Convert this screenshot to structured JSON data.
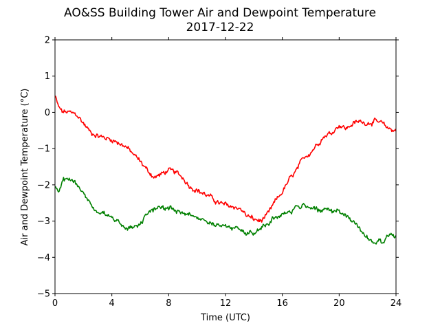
{
  "chart_data": {
    "type": "line",
    "title": "AO&SS Building Tower Air and Dewpoint Temperature",
    "subtitle": "2017-12-22",
    "xlabel": "Time (UTC)",
    "ylabel": "Air and Dewpoint Temperature (°C)",
    "xlim": [
      0,
      24
    ],
    "ylim": [
      -5,
      2
    ],
    "xticks": [
      "0",
      "4",
      "8",
      "12",
      "16",
      "20",
      "24"
    ],
    "yticks": [
      "2",
      "1",
      "0",
      "−1",
      "−2",
      "−3",
      "−4",
      "−5"
    ],
    "grid": false,
    "series": [
      {
        "color": "#ff0000",
        "x": [
          0,
          0.25,
          0.5,
          1,
          1.5,
          2,
          2.5,
          3,
          3.5,
          4,
          4.5,
          5,
          5.5,
          6,
          6.5,
          7,
          7.5,
          8,
          8.5,
          9,
          9.5,
          10,
          10.5,
          11,
          11.5,
          12,
          12.5,
          13,
          13.5,
          14,
          14.5,
          15,
          15.5,
          16,
          16.5,
          17,
          17.5,
          18,
          18.5,
          19,
          19.5,
          20,
          20.5,
          21,
          21.5,
          22,
          22.5,
          23,
          23.5,
          24
        ],
        "values": [
          0.45,
          0.15,
          0.02,
          0.0,
          -0.05,
          -0.3,
          -0.55,
          -0.65,
          -0.7,
          -0.75,
          -0.85,
          -0.95,
          -1.15,
          -1.35,
          -1.6,
          -1.8,
          -1.7,
          -1.6,
          -1.65,
          -1.8,
          -2.05,
          -2.15,
          -2.25,
          -2.35,
          -2.5,
          -2.55,
          -2.6,
          -2.65,
          -2.85,
          -2.95,
          -3.0,
          -2.8,
          -2.45,
          -2.2,
          -1.85,
          -1.6,
          -1.25,
          -1.1,
          -0.85,
          -0.65,
          -0.55,
          -0.35,
          -0.45,
          -0.3,
          -0.25,
          -0.3,
          -0.25,
          -0.3,
          -0.45,
          -0.5
        ]
      },
      {
        "color": "#008000",
        "x": [
          0,
          0.25,
          0.5,
          1,
          1.5,
          2,
          2.5,
          3,
          3.5,
          4,
          4.5,
          5,
          5.5,
          6,
          6.5,
          7,
          7.5,
          8,
          8.5,
          9,
          9.5,
          10,
          10.5,
          11,
          11.5,
          12,
          12.5,
          13,
          13.5,
          14,
          14.5,
          15,
          15.5,
          16,
          16.5,
          17,
          17.5,
          18,
          18.5,
          19,
          19.5,
          20,
          20.5,
          21,
          21.5,
          22,
          22.5,
          23,
          23.5,
          24
        ],
        "values": [
          -2.1,
          -2.15,
          -1.9,
          -1.85,
          -1.95,
          -2.2,
          -2.55,
          -2.75,
          -2.8,
          -2.9,
          -3.05,
          -3.2,
          -3.15,
          -3.05,
          -2.85,
          -2.65,
          -2.6,
          -2.65,
          -2.7,
          -2.75,
          -2.8,
          -2.9,
          -2.95,
          -3.05,
          -3.1,
          -3.15,
          -3.2,
          -3.25,
          -3.3,
          -3.3,
          -3.2,
          -3.05,
          -2.9,
          -2.8,
          -2.75,
          -2.65,
          -2.55,
          -2.6,
          -2.7,
          -2.65,
          -2.75,
          -2.7,
          -2.85,
          -3.0,
          -3.25,
          -3.45,
          -3.6,
          -3.55,
          -3.45,
          -3.4
        ]
      }
    ]
  }
}
